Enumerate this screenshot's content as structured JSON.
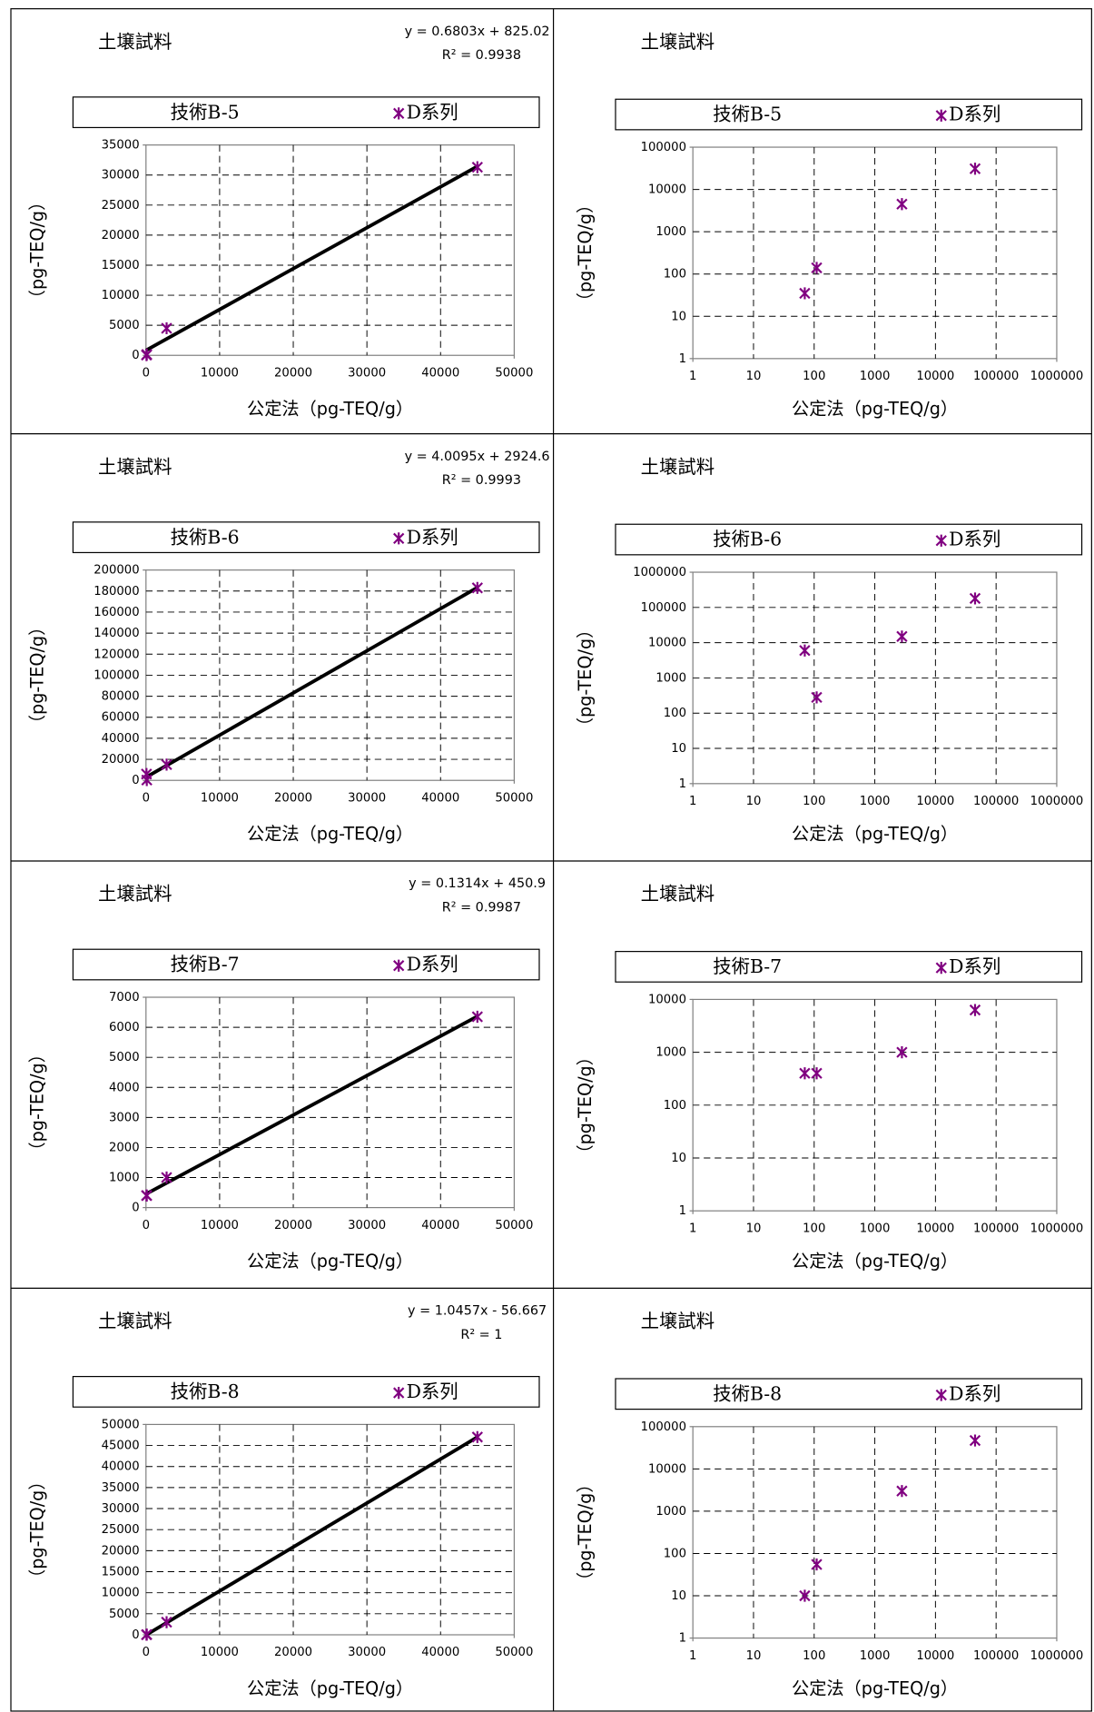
{
  "chart_data": [
    {
      "type": "scatter",
      "title": "土壌試料",
      "equation": "y = 0.6803x + 825.02",
      "r2": "R² = 0.9938",
      "legend_title": "技術B-5",
      "xlabel": "公定法（pg-TEQ/g）",
      "ylabel": "（pg-TEQ/g）",
      "xscale": "linear",
      "yscale": "linear",
      "grid": true,
      "xlim": [
        0,
        50000
      ],
      "xticks": [
        0,
        10000,
        20000,
        30000,
        40000,
        50000
      ],
      "ylim": [
        0,
        35000
      ],
      "yticks": [
        0,
        5000,
        10000,
        15000,
        20000,
        25000,
        30000,
        35000
      ],
      "series": [
        {
          "name": "D系列",
          "color": "#800080",
          "x": [
            70,
            110,
            2800,
            45000
          ],
          "values": [
            35,
            140,
            4500,
            31300
          ]
        }
      ],
      "trendline": {
        "slope": 0.6803,
        "intercept": 825.02,
        "color": "#000000"
      }
    },
    {
      "type": "scatter",
      "title": "土壌試料",
      "legend_title": "技術B-5",
      "xlabel": "公定法（pg-TEQ/g）",
      "ylabel": "（pg-TEQ/g）",
      "xscale": "log",
      "yscale": "log",
      "grid": true,
      "xlim": [
        1,
        1000000
      ],
      "xticks": [
        1,
        10,
        100,
        1000,
        10000,
        100000,
        1000000
      ],
      "ylim": [
        1,
        100000
      ],
      "yticks": [
        1,
        10,
        100,
        1000,
        10000,
        100000
      ],
      "series": [
        {
          "name": "D系列",
          "color": "#800080",
          "x": [
            70,
            110,
            2800,
            45000
          ],
          "values": [
            35,
            140,
            4500,
            31000
          ]
        }
      ]
    },
    {
      "type": "scatter",
      "title": "土壌試料",
      "equation": "y = 4.0095x + 2924.6",
      "r2": "R² = 0.9993",
      "legend_title": "技術B-6",
      "xlabel": "公定法（pg-TEQ/g）",
      "ylabel": "（pg-TEQ/g）",
      "xscale": "linear",
      "yscale": "linear",
      "grid": true,
      "xlim": [
        0,
        50000
      ],
      "xticks": [
        0,
        10000,
        20000,
        30000,
        40000,
        50000
      ],
      "ylim": [
        0,
        200000
      ],
      "yticks": [
        0,
        20000,
        40000,
        60000,
        80000,
        100000,
        120000,
        140000,
        160000,
        180000,
        200000
      ],
      "series": [
        {
          "name": "D系列",
          "color": "#800080",
          "x": [
            70,
            110,
            2800,
            45000
          ],
          "values": [
            6000,
            280,
            15000,
            183000
          ]
        }
      ],
      "trendline": {
        "slope": 4.0095,
        "intercept": 2924.6,
        "color": "#000000"
      }
    },
    {
      "type": "scatter",
      "title": "土壌試料",
      "legend_title": "技術B-6",
      "xlabel": "公定法（pg-TEQ/g）",
      "ylabel": "（pg-TEQ/g）",
      "xscale": "log",
      "yscale": "log",
      "grid": true,
      "xlim": [
        1,
        1000000
      ],
      "xticks": [
        1,
        10,
        100,
        1000,
        10000,
        100000,
        1000000
      ],
      "ylim": [
        1,
        1000000
      ],
      "yticks": [
        1,
        10,
        100,
        1000,
        10000,
        100000,
        1000000
      ],
      "series": [
        {
          "name": "D系列",
          "color": "#800080",
          "x": [
            70,
            110,
            2800,
            45000
          ],
          "values": [
            6000,
            280,
            15000,
            180000
          ]
        }
      ]
    },
    {
      "type": "scatter",
      "title": "土壌試料",
      "equation": "y = 0.1314x + 450.9",
      "r2": "R² = 0.9987",
      "legend_title": "技術B-7",
      "xlabel": "公定法（pg-TEQ/g）",
      "ylabel": "（pg-TEQ/g）",
      "xscale": "linear",
      "yscale": "linear",
      "grid": true,
      "xlim": [
        0,
        50000
      ],
      "xticks": [
        0,
        10000,
        20000,
        30000,
        40000,
        50000
      ],
      "ylim": [
        0,
        7000
      ],
      "yticks": [
        0,
        1000,
        2000,
        3000,
        4000,
        5000,
        6000,
        7000
      ],
      "series": [
        {
          "name": "D系列",
          "color": "#800080",
          "x": [
            70,
            110,
            2800,
            45000
          ],
          "values": [
            400,
            400,
            1000,
            6350
          ]
        }
      ],
      "trendline": {
        "slope": 0.1314,
        "intercept": 450.9,
        "color": "#000000"
      }
    },
    {
      "type": "scatter",
      "title": "土壌試料",
      "legend_title": "技術B-7",
      "xlabel": "公定法（pg-TEQ/g）",
      "ylabel": "（pg-TEQ/g）",
      "xscale": "log",
      "yscale": "log",
      "grid": true,
      "xlim": [
        1,
        1000000
      ],
      "xticks": [
        1,
        10,
        100,
        1000,
        10000,
        100000,
        1000000
      ],
      "ylim": [
        1,
        10000
      ],
      "yticks": [
        1,
        10,
        100,
        1000,
        10000
      ],
      "series": [
        {
          "name": "D系列",
          "color": "#800080",
          "x": [
            70,
            110,
            2800,
            45000
          ],
          "values": [
            400,
            400,
            1000,
            6300
          ]
        }
      ]
    },
    {
      "type": "scatter",
      "title": "土壌試料",
      "equation": "y = 1.0457x - 56.667",
      "r2": "R² = 1",
      "legend_title": "技術B-8",
      "xlabel": "公定法（pg-TEQ/g）",
      "ylabel": "（pg-TEQ/g）",
      "xscale": "linear",
      "yscale": "linear",
      "grid": true,
      "xlim": [
        0,
        50000
      ],
      "xticks": [
        0,
        10000,
        20000,
        30000,
        40000,
        50000
      ],
      "ylim": [
        0,
        50000
      ],
      "yticks": [
        0,
        5000,
        10000,
        15000,
        20000,
        25000,
        30000,
        35000,
        40000,
        45000,
        50000
      ],
      "series": [
        {
          "name": "D系列",
          "color": "#800080",
          "x": [
            70,
            110,
            2800,
            45000
          ],
          "values": [
            10,
            55,
            3000,
            47000
          ]
        }
      ],
      "trendline": {
        "slope": 1.0457,
        "intercept": -56.667,
        "color": "#000000"
      }
    },
    {
      "type": "scatter",
      "title": "土壌試料",
      "legend_title": "技術B-8",
      "xlabel": "公定法（pg-TEQ/g）",
      "ylabel": "（pg-TEQ/g）",
      "xscale": "log",
      "yscale": "log",
      "grid": true,
      "xlim": [
        1,
        1000000
      ],
      "xticks": [
        1,
        10,
        100,
        1000,
        10000,
        100000,
        1000000
      ],
      "ylim": [
        1,
        100000
      ],
      "yticks": [
        1,
        10,
        100,
        1000,
        10000,
        100000
      ],
      "series": [
        {
          "name": "D系列",
          "color": "#800080",
          "x": [
            70,
            110,
            2800,
            45000
          ],
          "values": [
            10,
            55,
            3000,
            47000
          ]
        }
      ]
    }
  ]
}
